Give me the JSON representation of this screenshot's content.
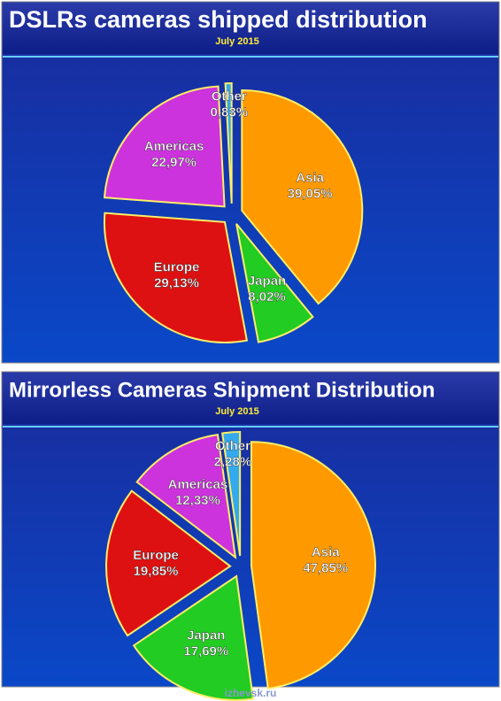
{
  "chart_data": [
    {
      "type": "pie",
      "title": "DSLRs cameras shipped distribution",
      "subtitle": "July 2015",
      "categories": [
        "Asia",
        "Japan",
        "Europe",
        "Americas",
        "Other"
      ],
      "values": [
        39.05,
        8.02,
        29.13,
        22.97,
        0.83
      ],
      "value_labels": [
        "39,05%",
        "8,02%",
        "29,13%",
        "22,97%",
        "0,83%"
      ],
      "colors": [
        "#ff9900",
        "#22cc22",
        "#dd1111",
        "#cc33dd",
        "#33aaee"
      ]
    },
    {
      "type": "pie",
      "title": "Mirrorless Cameras Shipment Distribution",
      "subtitle": "July 2015",
      "categories": [
        "Asia",
        "Japan",
        "Europe",
        "Americas",
        "Other"
      ],
      "values": [
        47.85,
        17.69,
        19.85,
        12.33,
        2.28
      ],
      "value_labels": [
        "47,85%",
        "17,69%",
        "19,85%",
        "12,33%",
        "2,28%"
      ],
      "colors": [
        "#ff9900",
        "#22cc22",
        "#dd1111",
        "#cc33dd",
        "#33aaee"
      ]
    }
  ],
  "watermark": "izhevsk.ru"
}
